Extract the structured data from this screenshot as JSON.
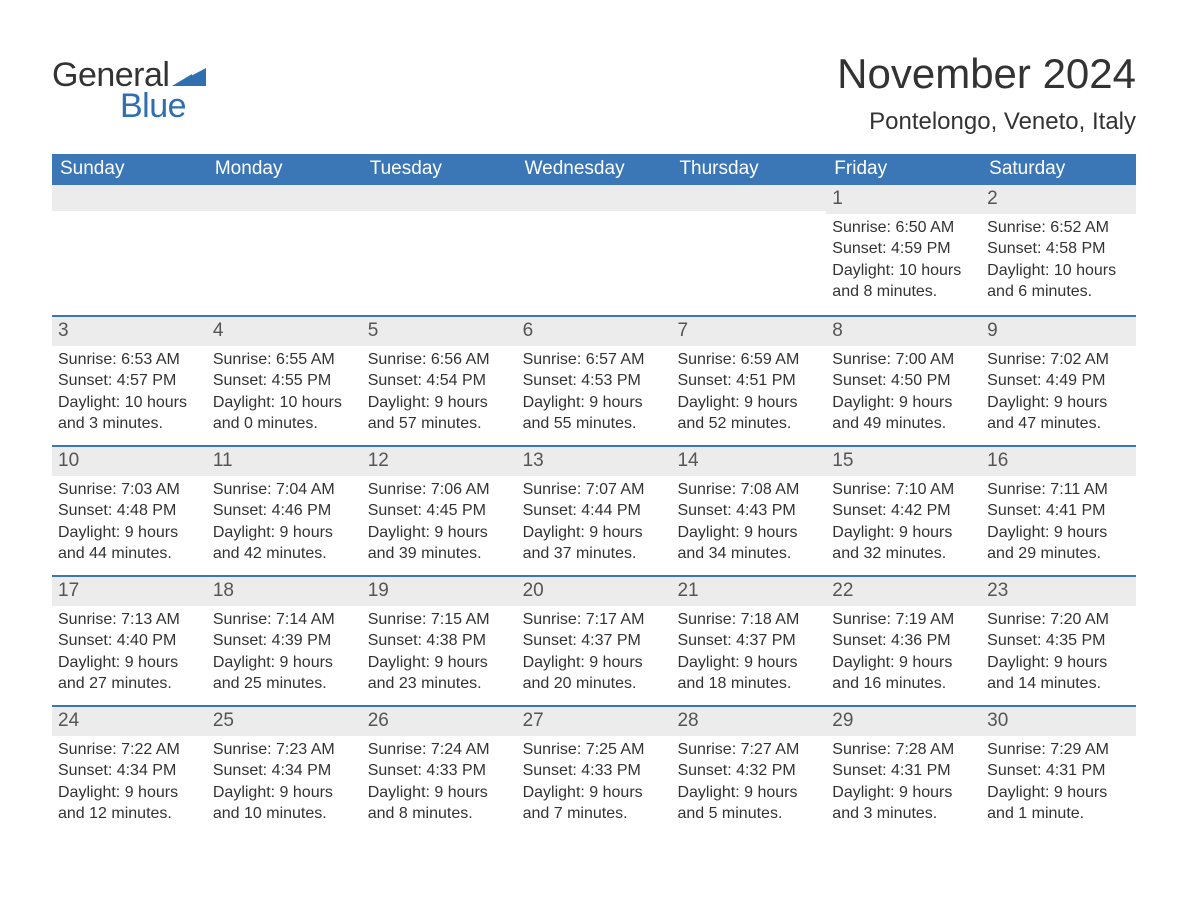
{
  "logo": {
    "text1": "General",
    "text2": "Blue",
    "brand_color": "#2f6fb0"
  },
  "title": "November 2024",
  "subtitle": "Pontelongo, Veneto, Italy",
  "header_bg": "#3b77b6",
  "header_fg": "#ffffff",
  "row_divider_color": "#3b77b6",
  "daynum_bg": "#ececec",
  "text_color": "#333333",
  "cell_fontsize": 16,
  "title_fontsize": 42,
  "subtitle_fontsize": 24,
  "day_names": [
    "Sunday",
    "Monday",
    "Tuesday",
    "Wednesday",
    "Thursday",
    "Friday",
    "Saturday"
  ],
  "weeks": [
    [
      null,
      null,
      null,
      null,
      null,
      {
        "n": "1",
        "sunrise": "Sunrise: 6:50 AM",
        "sunset": "Sunset: 4:59 PM",
        "daylight": "Daylight: 10 hours and 8 minutes."
      },
      {
        "n": "2",
        "sunrise": "Sunrise: 6:52 AM",
        "sunset": "Sunset: 4:58 PM",
        "daylight": "Daylight: 10 hours and 6 minutes."
      }
    ],
    [
      {
        "n": "3",
        "sunrise": "Sunrise: 6:53 AM",
        "sunset": "Sunset: 4:57 PM",
        "daylight": "Daylight: 10 hours and 3 minutes."
      },
      {
        "n": "4",
        "sunrise": "Sunrise: 6:55 AM",
        "sunset": "Sunset: 4:55 PM",
        "daylight": "Daylight: 10 hours and 0 minutes."
      },
      {
        "n": "5",
        "sunrise": "Sunrise: 6:56 AM",
        "sunset": "Sunset: 4:54 PM",
        "daylight": "Daylight: 9 hours and 57 minutes."
      },
      {
        "n": "6",
        "sunrise": "Sunrise: 6:57 AM",
        "sunset": "Sunset: 4:53 PM",
        "daylight": "Daylight: 9 hours and 55 minutes."
      },
      {
        "n": "7",
        "sunrise": "Sunrise: 6:59 AM",
        "sunset": "Sunset: 4:51 PM",
        "daylight": "Daylight: 9 hours and 52 minutes."
      },
      {
        "n": "8",
        "sunrise": "Sunrise: 7:00 AM",
        "sunset": "Sunset: 4:50 PM",
        "daylight": "Daylight: 9 hours and 49 minutes."
      },
      {
        "n": "9",
        "sunrise": "Sunrise: 7:02 AM",
        "sunset": "Sunset: 4:49 PM",
        "daylight": "Daylight: 9 hours and 47 minutes."
      }
    ],
    [
      {
        "n": "10",
        "sunrise": "Sunrise: 7:03 AM",
        "sunset": "Sunset: 4:48 PM",
        "daylight": "Daylight: 9 hours and 44 minutes."
      },
      {
        "n": "11",
        "sunrise": "Sunrise: 7:04 AM",
        "sunset": "Sunset: 4:46 PM",
        "daylight": "Daylight: 9 hours and 42 minutes."
      },
      {
        "n": "12",
        "sunrise": "Sunrise: 7:06 AM",
        "sunset": "Sunset: 4:45 PM",
        "daylight": "Daylight: 9 hours and 39 minutes."
      },
      {
        "n": "13",
        "sunrise": "Sunrise: 7:07 AM",
        "sunset": "Sunset: 4:44 PM",
        "daylight": "Daylight: 9 hours and 37 minutes."
      },
      {
        "n": "14",
        "sunrise": "Sunrise: 7:08 AM",
        "sunset": "Sunset: 4:43 PM",
        "daylight": "Daylight: 9 hours and 34 minutes."
      },
      {
        "n": "15",
        "sunrise": "Sunrise: 7:10 AM",
        "sunset": "Sunset: 4:42 PM",
        "daylight": "Daylight: 9 hours and 32 minutes."
      },
      {
        "n": "16",
        "sunrise": "Sunrise: 7:11 AM",
        "sunset": "Sunset: 4:41 PM",
        "daylight": "Daylight: 9 hours and 29 minutes."
      }
    ],
    [
      {
        "n": "17",
        "sunrise": "Sunrise: 7:13 AM",
        "sunset": "Sunset: 4:40 PM",
        "daylight": "Daylight: 9 hours and 27 minutes."
      },
      {
        "n": "18",
        "sunrise": "Sunrise: 7:14 AM",
        "sunset": "Sunset: 4:39 PM",
        "daylight": "Daylight: 9 hours and 25 minutes."
      },
      {
        "n": "19",
        "sunrise": "Sunrise: 7:15 AM",
        "sunset": "Sunset: 4:38 PM",
        "daylight": "Daylight: 9 hours and 23 minutes."
      },
      {
        "n": "20",
        "sunrise": "Sunrise: 7:17 AM",
        "sunset": "Sunset: 4:37 PM",
        "daylight": "Daylight: 9 hours and 20 minutes."
      },
      {
        "n": "21",
        "sunrise": "Sunrise: 7:18 AM",
        "sunset": "Sunset: 4:37 PM",
        "daylight": "Daylight: 9 hours and 18 minutes."
      },
      {
        "n": "22",
        "sunrise": "Sunrise: 7:19 AM",
        "sunset": "Sunset: 4:36 PM",
        "daylight": "Daylight: 9 hours and 16 minutes."
      },
      {
        "n": "23",
        "sunrise": "Sunrise: 7:20 AM",
        "sunset": "Sunset: 4:35 PM",
        "daylight": "Daylight: 9 hours and 14 minutes."
      }
    ],
    [
      {
        "n": "24",
        "sunrise": "Sunrise: 7:22 AM",
        "sunset": "Sunset: 4:34 PM",
        "daylight": "Daylight: 9 hours and 12 minutes."
      },
      {
        "n": "25",
        "sunrise": "Sunrise: 7:23 AM",
        "sunset": "Sunset: 4:34 PM",
        "daylight": "Daylight: 9 hours and 10 minutes."
      },
      {
        "n": "26",
        "sunrise": "Sunrise: 7:24 AM",
        "sunset": "Sunset: 4:33 PM",
        "daylight": "Daylight: 9 hours and 8 minutes."
      },
      {
        "n": "27",
        "sunrise": "Sunrise: 7:25 AM",
        "sunset": "Sunset: 4:33 PM",
        "daylight": "Daylight: 9 hours and 7 minutes."
      },
      {
        "n": "28",
        "sunrise": "Sunrise: 7:27 AM",
        "sunset": "Sunset: 4:32 PM",
        "daylight": "Daylight: 9 hours and 5 minutes."
      },
      {
        "n": "29",
        "sunrise": "Sunrise: 7:28 AM",
        "sunset": "Sunset: 4:31 PM",
        "daylight": "Daylight: 9 hours and 3 minutes."
      },
      {
        "n": "30",
        "sunrise": "Sunrise: 7:29 AM",
        "sunset": "Sunset: 4:31 PM",
        "daylight": "Daylight: 9 hours and 1 minute."
      }
    ]
  ]
}
